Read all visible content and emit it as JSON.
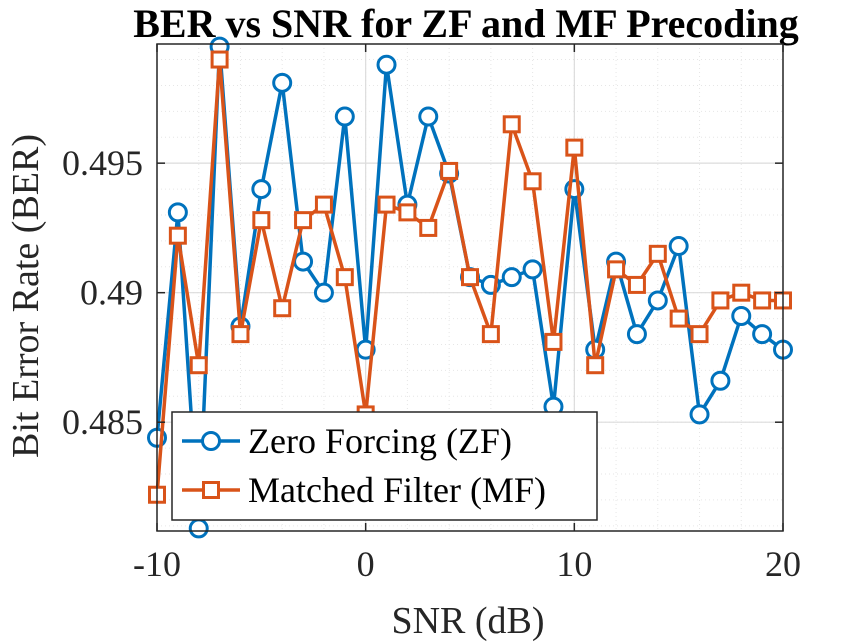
{
  "chart_data": {
    "type": "line",
    "title": "BER vs SNR for ZF and MF Precoding",
    "xlabel": "SNR (dB)",
    "ylabel": "Bit Error Rate (BER)",
    "xlim": [
      -10,
      20
    ],
    "ylim": [
      0.4808,
      0.4996
    ],
    "xticks": [
      "-10",
      "0",
      "10",
      "20"
    ],
    "yticks": [
      "0.485",
      "0.49",
      "0.495"
    ],
    "grid": true,
    "legend_position": "bottom-left",
    "x": [
      -10,
      -9,
      -8,
      -7,
      -6,
      -5,
      -4,
      -3,
      -2,
      -1,
      0,
      1,
      2,
      3,
      4,
      5,
      6,
      7,
      8,
      9,
      10,
      11,
      12,
      13,
      14,
      15,
      16,
      17,
      18,
      19,
      20
    ],
    "series": [
      {
        "name": "Zero Forcing (ZF)",
        "color": "#0072BD",
        "marker": "circle",
        "values": [
          0.4844,
          0.4931,
          0.4809,
          0.4995,
          0.4887,
          0.494,
          0.4981,
          0.4912,
          0.49,
          0.4968,
          0.4878,
          0.4988,
          0.4934,
          0.4968,
          0.4946,
          0.4906,
          0.4903,
          0.4906,
          0.4909,
          0.4856,
          0.494,
          0.4878,
          0.4912,
          0.4884,
          0.4897,
          0.4918,
          0.4853,
          0.4866,
          0.4891,
          0.4884,
          0.4878
        ]
      },
      {
        "name": "Matched Filter (MF)",
        "color": "#D95319",
        "marker": "square",
        "values": [
          0.4822,
          0.4922,
          0.4872,
          0.499,
          0.4884,
          0.4928,
          0.4894,
          0.4928,
          0.4934,
          0.4906,
          0.4853,
          0.4934,
          0.4931,
          0.4925,
          0.4947,
          0.4906,
          0.4884,
          0.4965,
          0.4943,
          0.4881,
          0.4956,
          0.4872,
          0.4909,
          0.4903,
          0.4915,
          0.489,
          0.4884,
          0.4897,
          0.49,
          0.4897,
          0.4897
        ]
      }
    ]
  }
}
